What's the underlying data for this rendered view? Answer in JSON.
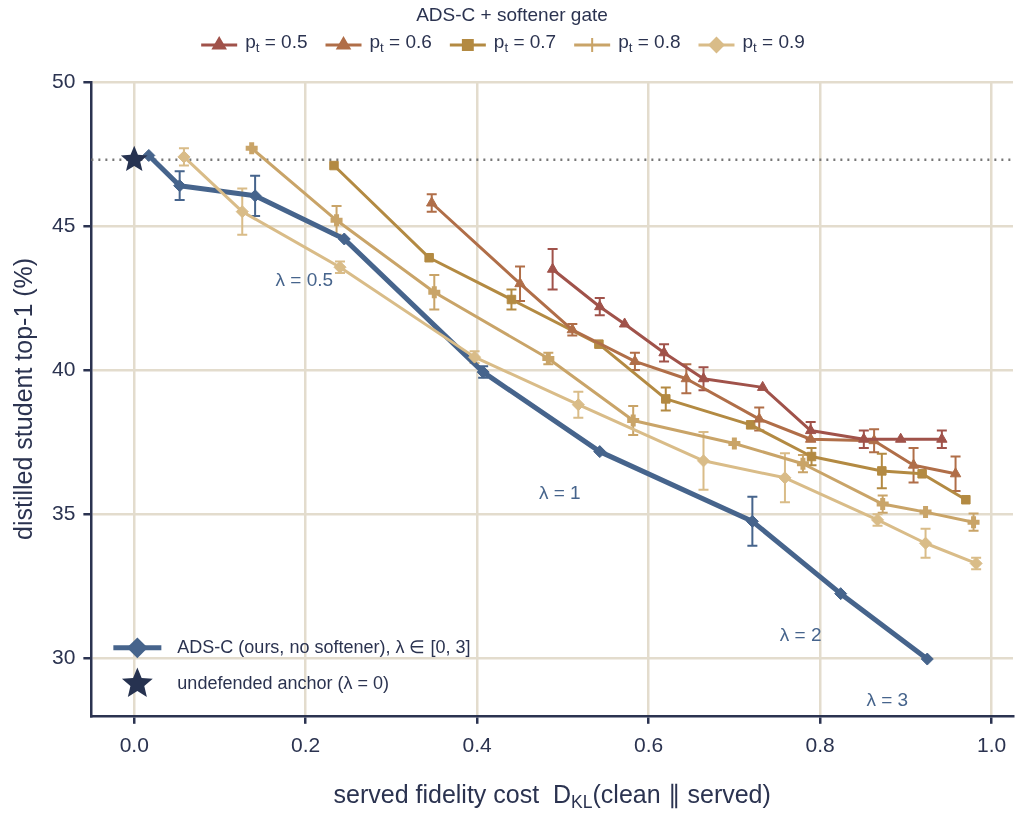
{
  "chart_data": {
    "type": "line",
    "xlabel": "served fidelity cost  D$_{KL}$(clean ∥ served)",
    "ylabel": "distilled student top-1 (%)",
    "legend_title": "ADS-C + softener gate",
    "legend": "top",
    "grid": true,
    "xlim": [
      -0.05,
      1.025
    ],
    "ylim": [
      28,
      50
    ],
    "xticks": [
      {
        "value": 0,
        "label": "0.0"
      },
      {
        "value": 0.2,
        "label": "0.2"
      },
      {
        "value": 0.4,
        "label": "0.4"
      },
      {
        "value": 0.6,
        "label": "0.6"
      },
      {
        "value": 0.8,
        "label": "0.8"
      },
      {
        "value": 1,
        "label": "1.0"
      }
    ],
    "yticks": [
      30,
      35,
      40,
      45,
      50
    ],
    "ref_lines": [
      {
        "axis": "y",
        "value": 47.3,
        "color": "#777777",
        "line_style": "dotted"
      }
    ],
    "annotations": [
      {
        "text": "λ = 0.5",
        "x": 0.245,
        "y": 44.55
      },
      {
        "text": "λ = 1",
        "x": 0.543,
        "y": 37.17
      },
      {
        "text": "λ = 2",
        "x": 0.824,
        "y": 32.24
      },
      {
        "text": "λ = 3",
        "x": 0.925,
        "y": 29.97
      }
    ],
    "series": [
      {
        "name": "p$_{t}$ = 0.5",
        "color": "#a0524a",
        "marker": "triangle",
        "x": [
          0.488,
          0.543,
          0.572,
          0.618,
          0.664,
          0.733,
          0.789,
          0.851,
          0.894,
          0.942
        ],
        "values": [
          43.5,
          42.2,
          41.6,
          40.6,
          39.7,
          39.4,
          37.9,
          37.6,
          37.6,
          37.6
        ],
        "errors": [
          0.7,
          0.3,
          null,
          0.3,
          0.4,
          null,
          0.3,
          0.3,
          null,
          0.3
        ]
      },
      {
        "name": "p$_{t}$ = 0.6",
        "color": "#b06e48",
        "marker": "triangle",
        "x": [
          0.347,
          0.45,
          0.511,
          0.584,
          0.644,
          0.729,
          0.789,
          0.863,
          0.909,
          0.958
        ],
        "values": [
          45.8,
          43.0,
          41.4,
          40.3,
          39.7,
          38.3,
          37.6,
          37.55,
          36.7,
          36.4
        ],
        "errors": [
          0.3,
          0.6,
          0.2,
          0.3,
          0.5,
          0.4,
          null,
          0.4,
          0.6,
          0.6
        ]
      },
      {
        "name": "p$_{t}$ = 0.7",
        "color": "#b38a42",
        "marker": "square",
        "x": [
          0.233,
          0.344,
          0.44,
          0.542,
          0.62,
          0.719,
          0.79,
          0.872,
          0.919,
          0.97
        ],
        "values": [
          47.1,
          43.9,
          42.45,
          40.9,
          39.0,
          38.1,
          37.0,
          36.5,
          36.4,
          35.5
        ],
        "errors": [
          null,
          null,
          0.35,
          null,
          0.4,
          null,
          0.3,
          0.6,
          null,
          null
        ]
      },
      {
        "name": "p$_{t}$ = 0.8",
        "color": "#c9a468",
        "marker": "cross",
        "x": [
          0.137,
          0.236,
          0.35,
          0.483,
          0.582,
          0.7,
          0.78,
          0.873,
          0.923,
          0.979
        ],
        "values": [
          47.7,
          45.2,
          42.7,
          40.4,
          38.25,
          37.45,
          36.75,
          35.35,
          35.07,
          34.72
        ],
        "errors": [
          null,
          0.5,
          0.6,
          0.2,
          0.5,
          null,
          0.3,
          0.3,
          null,
          0.3
        ]
      },
      {
        "name": "p$_{t}$ = 0.9",
        "color": "#d9bc88",
        "marker": "diamond",
        "x": [
          0.058,
          0.126,
          0.24,
          0.397,
          0.518,
          0.664,
          0.759,
          0.867,
          0.923,
          0.982
        ],
        "values": [
          47.4,
          45.5,
          43.57,
          40.45,
          38.8,
          36.85,
          36.26,
          34.8,
          33.99,
          33.29
        ],
        "errors": [
          0.3,
          0.8,
          0.2,
          0.2,
          0.45,
          1.0,
          0.85,
          0.2,
          0.5,
          0.2
        ]
      },
      {
        "name": "ADS-C (ours, no softener), λ ∈ [0, 3]",
        "color": "#46648c",
        "marker": "diamond",
        "x": [
          0.017,
          0.053,
          0.141,
          0.245,
          0.407,
          0.543,
          0.721,
          0.824,
          0.925
        ],
        "values": [
          47.45,
          46.4,
          46.05,
          44.55,
          39.93,
          37.17,
          34.75,
          32.24,
          29.97
        ],
        "errors": [
          null,
          0.5,
          0.7,
          null,
          0.2,
          null,
          0.85,
          null,
          null
        ]
      },
      {
        "name": "undefended anchor (λ = 0)",
        "type": "scatter",
        "color": "#263250",
        "marker": "star",
        "x": [
          0
        ],
        "values": [
          47.3
        ]
      }
    ]
  }
}
